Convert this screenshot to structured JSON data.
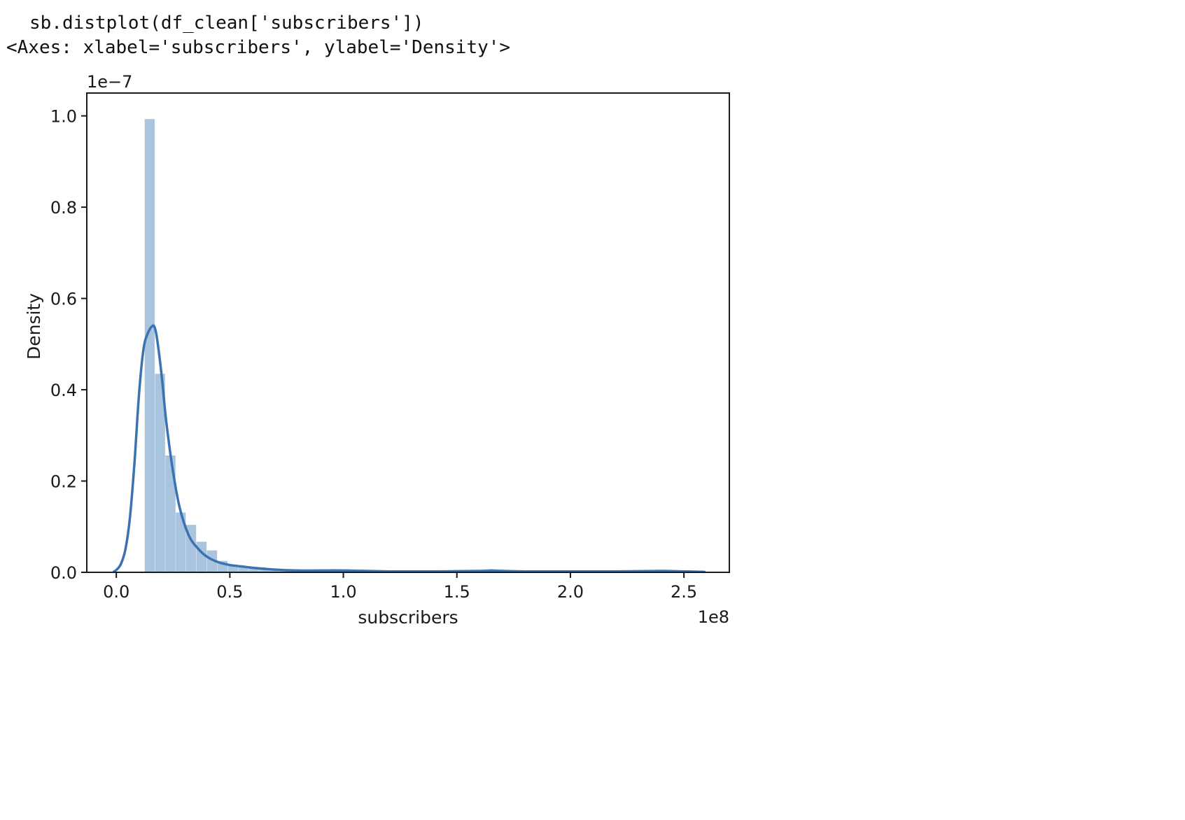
{
  "cell": {
    "input_code": "sb.distplot(df_clean['subscribers'])",
    "output_repr": "<Axes: xlabel='subscribers', ylabel='Density'>"
  },
  "chart_data": {
    "type": "bar",
    "xlabel": "subscribers",
    "ylabel": "Density",
    "x_offset_label": "1e8",
    "y_offset_label": "1e−7",
    "xlim": [
      -0.13,
      2.7
    ],
    "ylim": [
      0,
      1.05
    ],
    "x_scale_factor": 100000000,
    "y_scale_factor": 1e-07,
    "xticks": [
      0.0,
      0.5,
      1.0,
      1.5,
      2.0,
      2.5
    ],
    "xtick_labels": [
      "0.0",
      "0.5",
      "1.0",
      "1.5",
      "2.0",
      "2.5"
    ],
    "yticks": [
      0.0,
      0.2,
      0.4,
      0.6,
      0.8,
      1.0
    ],
    "ytick_labels": [
      "0.0",
      "0.2",
      "0.4",
      "0.6",
      "0.8",
      "1.0"
    ],
    "bins": {
      "edges": [
        0.125,
        0.17,
        0.216,
        0.262,
        0.307,
        0.353,
        0.399,
        0.445,
        0.491,
        0.537,
        0.583,
        0.629,
        0.675,
        0.721,
        0.767,
        0.813,
        0.859,
        0.905,
        0.951,
        0.997,
        1.043,
        1.089,
        1.135,
        1.181,
        1.227,
        1.273,
        1.319,
        1.365,
        1.411,
        1.457,
        1.503,
        1.549,
        1.595,
        1.641,
        1.687,
        1.733,
        1.779,
        1.825,
        1.871,
        1.917,
        1.963,
        2.009,
        2.055,
        2.101,
        2.147,
        2.193,
        2.239,
        2.285,
        2.331,
        2.377,
        2.423,
        2.469,
        2.515,
        2.561
      ],
      "heights": [
        0.993,
        0.435,
        0.256,
        0.131,
        0.104,
        0.067,
        0.048,
        0.025,
        0.017,
        0.012,
        0.009,
        0.007,
        0.005,
        0.004,
        0.004,
        0.003,
        0.003,
        0.003,
        0.002,
        0.003,
        0.002,
        0.002,
        0.002,
        0.002,
        0.001,
        0.001,
        0.001,
        0.001,
        0.001,
        0.001,
        0.001,
        0.001,
        0.002,
        0.002,
        0.001,
        0.001,
        0.001,
        0.001,
        0.001,
        0.001,
        0.001,
        0.001,
        0.001,
        0.001,
        0.001,
        0.001,
        0.001,
        0.001,
        0.001,
        0.001,
        0.001,
        0.001,
        0.001
      ]
    },
    "kde": {
      "x": [
        -0.01,
        0.0,
        0.02,
        0.04,
        0.06,
        0.08,
        0.1,
        0.12,
        0.14,
        0.16,
        0.17,
        0.18,
        0.2,
        0.22,
        0.25,
        0.28,
        0.32,
        0.36,
        0.4,
        0.45,
        0.5,
        0.55,
        0.6,
        0.7,
        0.8,
        0.9,
        1.0,
        1.2,
        1.4,
        1.6,
        1.65,
        1.7,
        1.8,
        2.0,
        2.2,
        2.4,
        2.5,
        2.59
      ],
      "y": [
        0.002,
        0.005,
        0.018,
        0.05,
        0.12,
        0.24,
        0.39,
        0.49,
        0.525,
        0.54,
        0.535,
        0.51,
        0.43,
        0.33,
        0.22,
        0.14,
        0.08,
        0.052,
        0.034,
        0.022,
        0.016,
        0.013,
        0.01,
        0.006,
        0.004,
        0.004,
        0.004,
        0.002,
        0.002,
        0.003,
        0.004,
        0.003,
        0.002,
        0.002,
        0.002,
        0.003,
        0.002,
        0.001
      ]
    },
    "bar_color": "#a9c4de",
    "line_color": "#3b73b0",
    "grid": false,
    "legend": "none"
  }
}
